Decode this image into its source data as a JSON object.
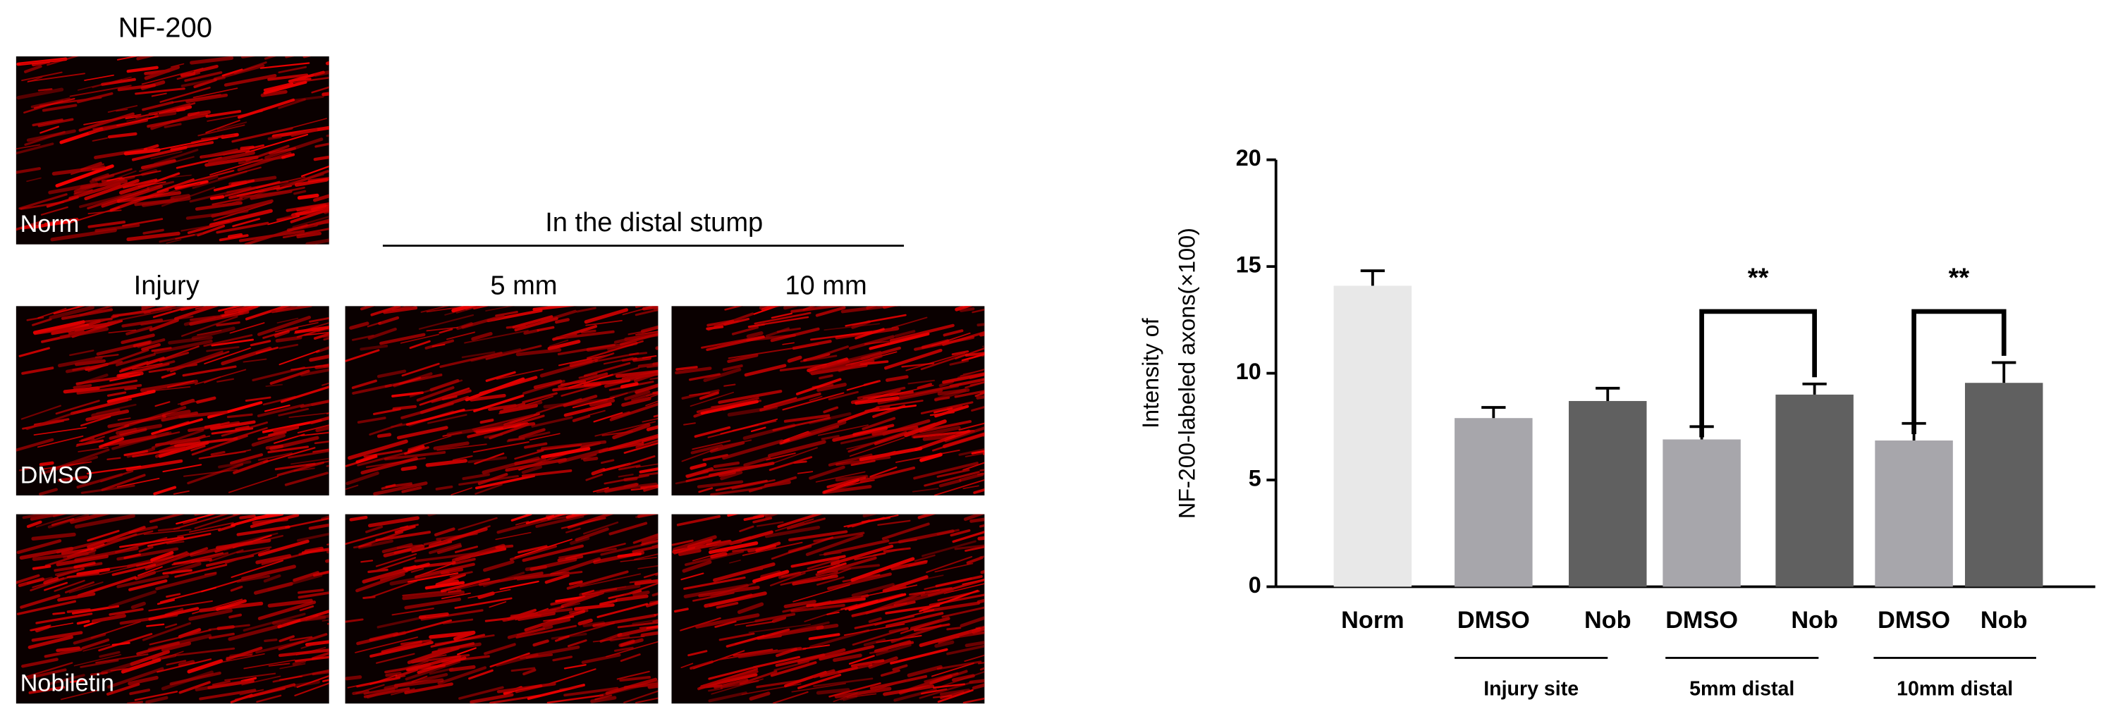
{
  "panels": {
    "title": "NF-200",
    "header": "In the distal stump",
    "columns": [
      "Injury",
      "5 mm",
      "10 mm"
    ],
    "rows": [
      "Norm",
      "DMSO",
      "Nobiletin"
    ]
  },
  "chart_data": {
    "type": "bar",
    "y_label": [
      "Intensity of",
      "NF-200-labeled axons(×100)"
    ],
    "categories": [
      "Norm",
      "DMSO",
      "Nob",
      "DMSO",
      "Nob",
      "DMSO",
      "Nob"
    ],
    "values": [
      14.1,
      7.9,
      8.7,
      6.9,
      9.0,
      6.85,
      9.55
    ],
    "errors": [
      0.7,
      0.5,
      0.6,
      0.6,
      0.5,
      0.8,
      0.95
    ],
    "colors": [
      "#e8e8e8",
      "#a7a6ab",
      "#606060",
      "#a7a6ab",
      "#606060",
      "#a7a6ab",
      "#606060"
    ],
    "groups": [
      "Injury site",
      "5mm distal",
      "10mm distal"
    ],
    "annotations": [
      "**",
      "**"
    ],
    "ylim": [
      0,
      20
    ],
    "yticks": [
      0,
      5,
      10,
      15,
      20
    ]
  }
}
